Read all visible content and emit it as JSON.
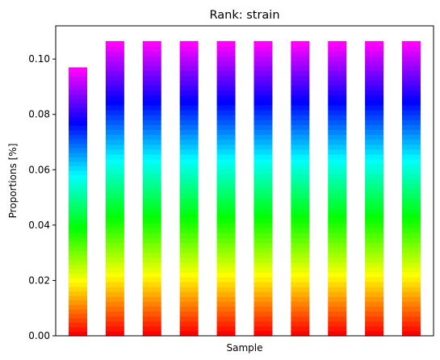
{
  "chart_data": {
    "type": "bar",
    "stacked": true,
    "title": "Rank: strain",
    "xlabel": "Sample",
    "ylabel": "Proportions [%]",
    "ylim": [
      0,
      0.112
    ],
    "yticks": [
      "0.00",
      "0.02",
      "0.04",
      "0.06",
      "0.08",
      "0.10"
    ],
    "xticks_visible": false,
    "grid": false,
    "legend": "none",
    "colormap": "gist_rainbow",
    "segments_per_bar": 60,
    "bar_totals": [
      0.097,
      0.1065,
      0.1065,
      0.1065,
      0.1065,
      0.1065,
      0.1065,
      0.1065,
      0.1065,
      0.1065
    ]
  }
}
